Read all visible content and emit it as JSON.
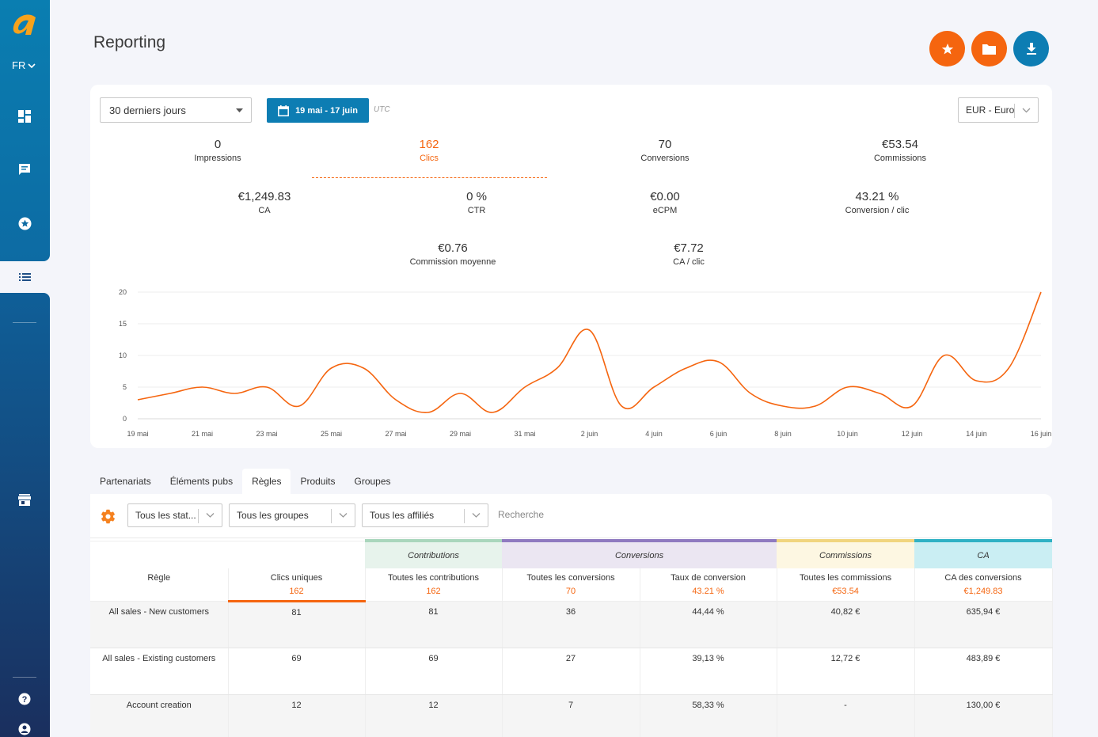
{
  "sidebar": {
    "language": "FR",
    "icons": [
      "dashboard-icon",
      "chat-icon",
      "star-icon",
      "list-icon",
      "store-icon",
      "help-icon",
      "user-icon"
    ]
  },
  "header": {
    "title": "Reporting",
    "buttons": [
      "favorite-button",
      "folder-button",
      "download-button"
    ]
  },
  "controls": {
    "period": "30 derniers jours",
    "date_range": "19 mai - 17 juin",
    "timezone": "UTC",
    "currency": "EUR - Euro"
  },
  "kpis": [
    {
      "value": "0",
      "label": "Impressions"
    },
    {
      "value": "162",
      "label": "Clics"
    },
    {
      "value": "70",
      "label": "Conversions"
    },
    {
      "value": "€53.54",
      "label": "Commissions"
    },
    {
      "value": "€1,249.83",
      "label": "CA"
    },
    {
      "value": "0 %",
      "label": "CTR"
    },
    {
      "value": "€0.00",
      "label": "eCPM"
    },
    {
      "value": "43.21 %",
      "label": "Conversion / clic"
    },
    {
      "value": "€0.76",
      "label": "Commission moyenne"
    },
    {
      "value": "€7.72",
      "label": "CA / clic"
    }
  ],
  "chart_data": {
    "type": "line",
    "series": [
      {
        "values": [
          3,
          4,
          5,
          4,
          5,
          2,
          8,
          8,
          3,
          1,
          4,
          1,
          5,
          8,
          14,
          2,
          5,
          8,
          9,
          4,
          2,
          2,
          5,
          4,
          2,
          10,
          6,
          8,
          20
        ]
      }
    ],
    "x": [
      "19 mai",
      "20 mai",
      "21 mai",
      "22 mai",
      "23 mai",
      "24 mai",
      "25 mai",
      "26 mai",
      "27 mai",
      "28 mai",
      "29 mai",
      "30 mai",
      "31 mai",
      "1 juin",
      "2 juin",
      "3 juin",
      "4 juin",
      "5 juin",
      "6 juin",
      "7 juin",
      "8 juin",
      "9 juin",
      "10 juin",
      "11 juin",
      "12 juin",
      "13 juin",
      "14 juin",
      "15 juin",
      "16 juin"
    ],
    "x_tick_labels": [
      "19 mai",
      "21 mai",
      "23 mai",
      "25 mai",
      "27 mai",
      "29 mai",
      "31 mai",
      "2 juin",
      "4 juin",
      "6 juin",
      "8 juin",
      "10 juin",
      "12 juin",
      "14 juin",
      "16 juin"
    ],
    "y_ticks": [
      "0",
      "5",
      "10",
      "15",
      "20"
    ],
    "ylim": [
      0,
      20
    ],
    "color": "#f5650f",
    "grid": true
  },
  "tabs": [
    "Partenariats",
    "Éléments pubs",
    "Règles",
    "Produits",
    "Groupes"
  ],
  "active_tab": "Règles",
  "filters": {
    "status": "Tous les stat...",
    "groups": "Tous les groupes",
    "affiliates": "Tous les affiliés",
    "search_placeholder": "Recherche"
  },
  "table": {
    "groups": [
      "Contributions",
      "Conversions",
      "Commissions",
      "CA"
    ],
    "columns": [
      {
        "label": "Règle",
        "total": ""
      },
      {
        "label": "Clics uniques",
        "total": "162"
      },
      {
        "label": "Toutes les contributions",
        "total": "162"
      },
      {
        "label": "Toutes les conversions",
        "total": "70"
      },
      {
        "label": "Taux de conversion",
        "total": "43.21 %"
      },
      {
        "label": "Toutes les commissions",
        "total": "€53.54"
      },
      {
        "label": "CA des conversions",
        "total": "€1,249.83"
      }
    ],
    "rows": [
      [
        "All sales - New customers",
        "81",
        "81",
        "36",
        "44,44 %",
        "40,82 €",
        "635,94 €"
      ],
      [
        "All sales - Existing customers",
        "69",
        "69",
        "27",
        "39,13 %",
        "12,72 €",
        "483,89 €"
      ],
      [
        "Account creation",
        "12",
        "12",
        "7",
        "58,33 %",
        "-",
        "130,00 €"
      ]
    ]
  }
}
